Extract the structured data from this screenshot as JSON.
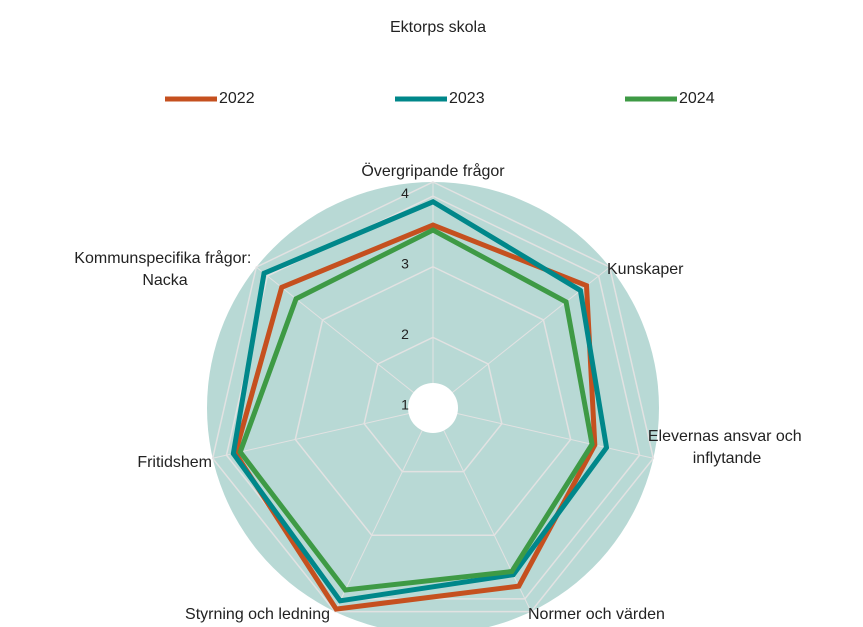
{
  "chart_data": {
    "type": "radar",
    "title": "Ektorps skola",
    "categories": [
      "Övergripande frågor",
      "Kunskaper",
      "Elevernas ansvar och inflytande",
      "Normer och värden",
      "Styrning och ledning",
      "Fritidshem",
      "Kommunspecifika frågor: Nacka"
    ],
    "series": [
      {
        "name": "2022",
        "color": "#c5501f",
        "values": [
          3.59,
          3.78,
          3.35,
          3.8,
          4.16,
          3.87,
          3.74
        ]
      },
      {
        "name": "2023",
        "color": "#00878a",
        "values": [
          3.92,
          3.67,
          3.52,
          3.62,
          4.03,
          3.9,
          4.06
        ]
      },
      {
        "name": "2024",
        "color": "#3e9a45",
        "values": [
          3.52,
          3.41,
          3.31,
          3.57,
          3.86,
          3.8,
          3.48
        ]
      }
    ],
    "rlim": [
      1,
      4.2
    ],
    "rticks": [
      1,
      2,
      3,
      4
    ],
    "grid": true,
    "legend": "top"
  }
}
